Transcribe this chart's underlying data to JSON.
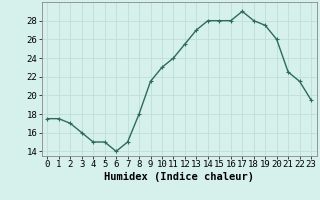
{
  "x": [
    0,
    1,
    2,
    3,
    4,
    5,
    6,
    7,
    8,
    9,
    10,
    11,
    12,
    13,
    14,
    15,
    16,
    17,
    18,
    19,
    20,
    21,
    22,
    23
  ],
  "y": [
    17.5,
    17.5,
    17.0,
    16.0,
    15.0,
    15.0,
    14.0,
    15.0,
    18.0,
    21.5,
    23.0,
    24.0,
    25.5,
    27.0,
    28.0,
    28.0,
    28.0,
    29.0,
    28.0,
    27.5,
    26.0,
    22.5,
    21.5,
    19.5
  ],
  "xlabel": "Humidex (Indice chaleur)",
  "bg_color": "#d6f0eb",
  "grid_color": "#c0ddd8",
  "line_color": "#2d6b5e",
  "marker_color": "#2d6b5e",
  "ylim": [
    13.5,
    30.0
  ],
  "xlim": [
    -0.5,
    23.5
  ],
  "yticks": [
    14,
    16,
    18,
    20,
    22,
    24,
    26,
    28
  ],
  "xtick_labels": [
    "0",
    "1",
    "2",
    "3",
    "4",
    "5",
    "6",
    "7",
    "8",
    "9",
    "10",
    "11",
    "12",
    "13",
    "14",
    "15",
    "16",
    "17",
    "18",
    "19",
    "20",
    "21",
    "22",
    "23"
  ],
  "xlabel_fontsize": 7.5,
  "tick_fontsize": 6.5,
  "line_width": 1.0,
  "marker_size": 2.5
}
